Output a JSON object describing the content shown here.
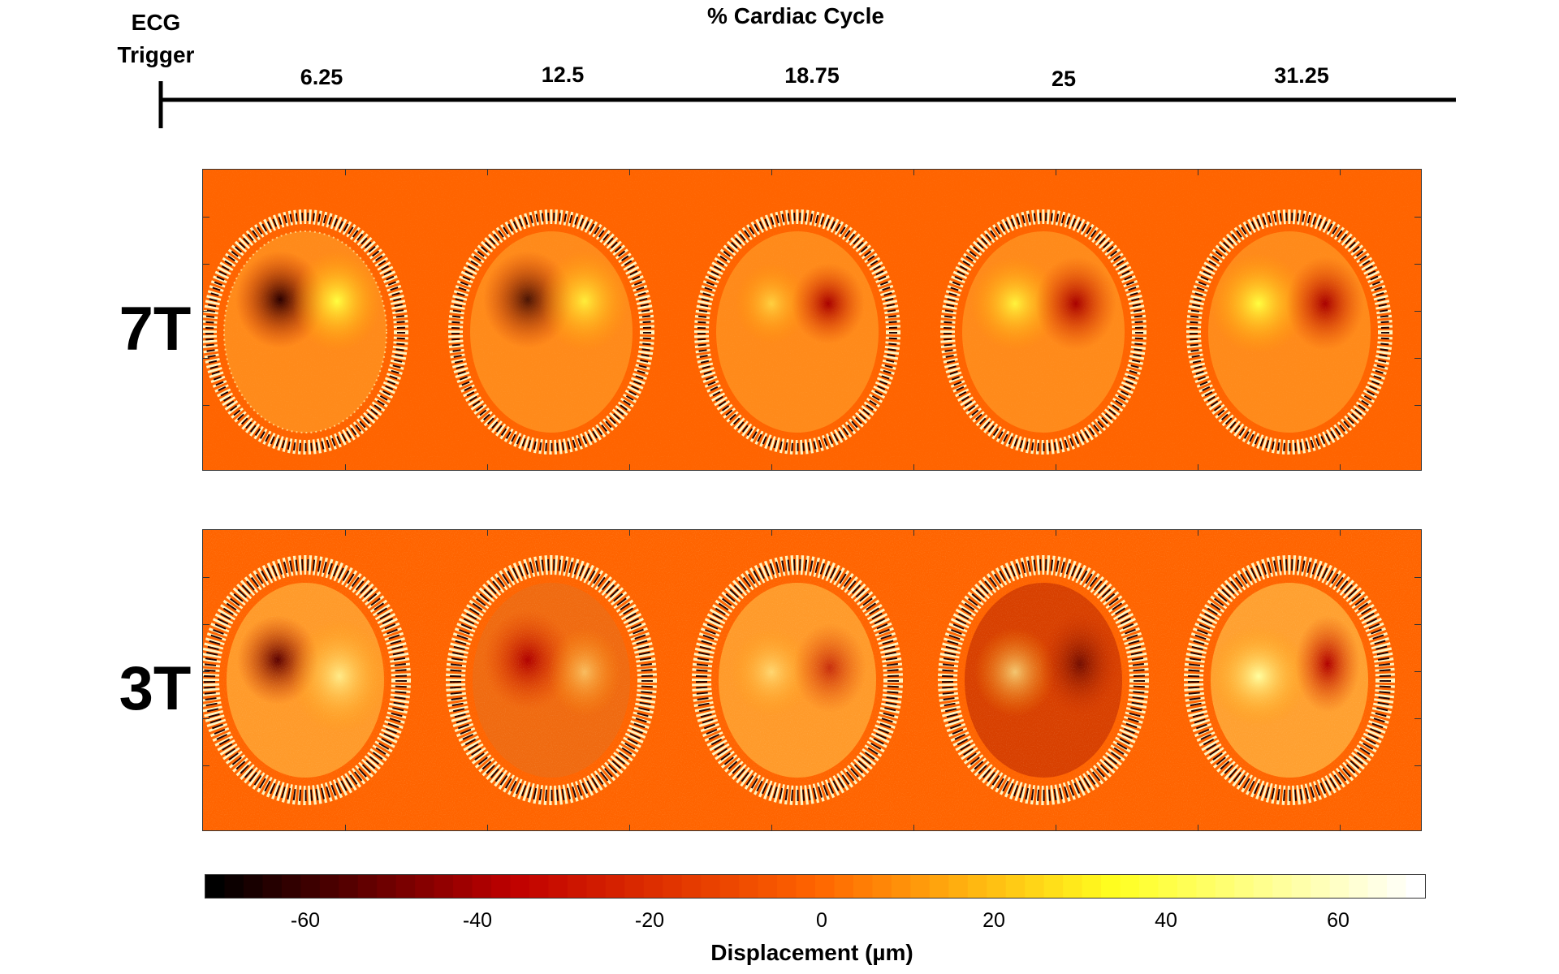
{
  "header": {
    "trigger_label": "ECG Trigger",
    "title": "% Cardiac Cycle",
    "phases": [
      "6.25",
      "12.5",
      "18.75",
      "25",
      "31.25"
    ]
  },
  "rows": [
    {
      "label": "7T",
      "panel": "7t"
    },
    {
      "label": "3T",
      "panel": "3t"
    }
  ],
  "colorbar": {
    "label": "Displacement (µm)",
    "ticks": [
      "-60",
      "-40",
      "-20",
      "0",
      "20",
      "40",
      "60"
    ],
    "range": [
      -72,
      70
    ],
    "colors": {
      "min": "#000000",
      "low": "#c00000",
      "mid": "#ff6400",
      "high": "#ffff20",
      "max": "#ffffff"
    }
  }
}
